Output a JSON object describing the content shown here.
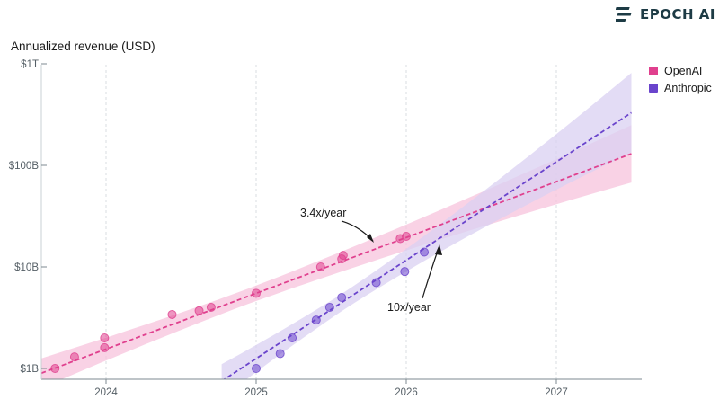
{
  "brand": {
    "name": "EPOCH AI",
    "logo_icon": "epoch-stripes-icon"
  },
  "chart_data": {
    "type": "scatter",
    "title": "",
    "ylabel": "Annualized revenue (USD)",
    "xlabel": "",
    "y_scale": "log",
    "ylim": [
      0.75,
      1300
    ],
    "xlim": [
      2023.57,
      2027.57
    ],
    "y_ticks": [
      {
        "value": 1,
        "label": "$1B"
      },
      {
        "value": 10,
        "label": "$10B"
      },
      {
        "value": 100,
        "label": "$100B"
      },
      {
        "value": 1000,
        "label": "$1T"
      }
    ],
    "x_ticks": [
      {
        "value": 2024,
        "label": "2024"
      },
      {
        "value": 2025,
        "label": "2025"
      },
      {
        "value": 2026,
        "label": "2026"
      },
      {
        "value": 2027,
        "label": "2027"
      }
    ],
    "grid": "vertical dashed",
    "legend": "right",
    "series": [
      {
        "name": "OpenAI",
        "color": "#e0408e",
        "band_color": "#f7c3dc",
        "points": [
          {
            "x": 2023.66,
            "y": 1.0
          },
          {
            "x": 2023.79,
            "y": 1.3
          },
          {
            "x": 2023.99,
            "y": 1.6
          },
          {
            "x": 2023.99,
            "y": 2.0
          },
          {
            "x": 2024.44,
            "y": 3.4
          },
          {
            "x": 2024.62,
            "y": 3.7
          },
          {
            "x": 2024.7,
            "y": 4.0
          },
          {
            "x": 2025.0,
            "y": 5.5
          },
          {
            "x": 2025.43,
            "y": 10.0
          },
          {
            "x": 2025.57,
            "y": 12.0
          },
          {
            "x": 2025.58,
            "y": 13.0
          },
          {
            "x": 2025.96,
            "y": 19.0
          },
          {
            "x": 2026.0,
            "y": 20.0
          }
        ],
        "trend": {
          "x": [
            2023.57,
            2027.5
          ],
          "y": [
            0.9,
            130
          ],
          "label": "3.4x/year"
        }
      },
      {
        "name": "Anthropic",
        "color": "#6a44cc",
        "band_color": "#d9d0f2",
        "points": [
          {
            "x": 2025.0,
            "y": 1.0
          },
          {
            "x": 2025.16,
            "y": 1.4
          },
          {
            "x": 2025.24,
            "y": 2.0
          },
          {
            "x": 2025.4,
            "y": 3.0
          },
          {
            "x": 2025.49,
            "y": 4.0
          },
          {
            "x": 2025.57,
            "y": 5.0
          },
          {
            "x": 2025.8,
            "y": 7.0
          },
          {
            "x": 2025.99,
            "y": 9.0
          },
          {
            "x": 2026.12,
            "y": 14.0
          }
        ],
        "trend": {
          "x": [
            2024.77,
            2027.5
          ],
          "y": [
            0.75,
            330
          ],
          "label": "10x/year"
        }
      }
    ],
    "annotations": [
      "3.4x/year",
      "10x/year"
    ]
  }
}
